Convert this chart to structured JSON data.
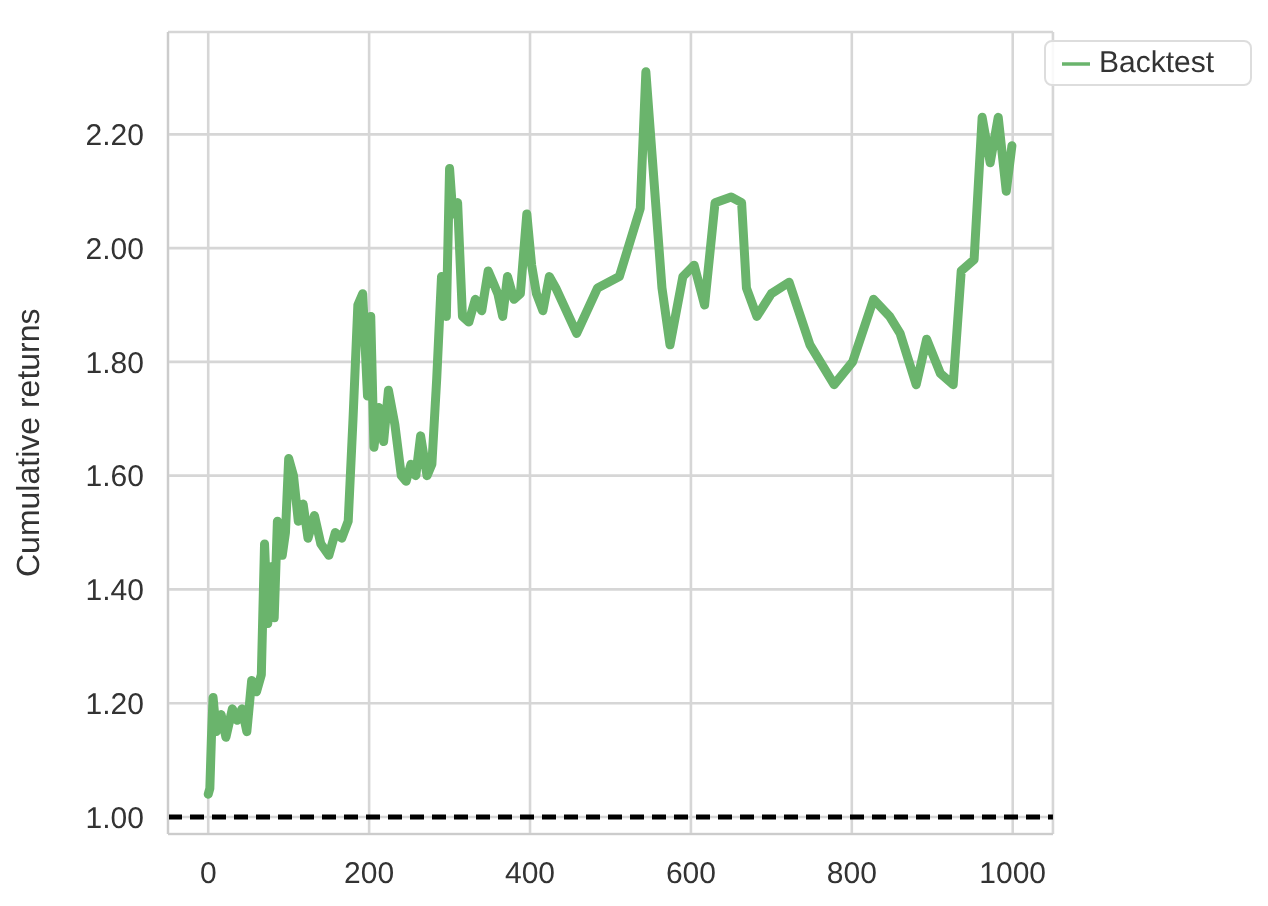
{
  "chart_data": {
    "type": "line",
    "ylabel": "Cumulative returns",
    "x": [
      0,
      2,
      4,
      6,
      10,
      16,
      22,
      30,
      36,
      42,
      48,
      54,
      60,
      66,
      70,
      74,
      78,
      82,
      86,
      92,
      96,
      100,
      106,
      112,
      118,
      124,
      132,
      140,
      150,
      158,
      166,
      174,
      180,
      186,
      192,
      198,
      202,
      206,
      212,
      218,
      224,
      232,
      240,
      246,
      252,
      258,
      264,
      272,
      278,
      284,
      290,
      296,
      300,
      304,
      310,
      316,
      324,
      332,
      340,
      348,
      354,
      360,
      366,
      372,
      380,
      388,
      396,
      402,
      408,
      416,
      424,
      432,
      458,
      484,
      511,
      537,
      544,
      554,
      564,
      574,
      590,
      604,
      617,
      630,
      650,
      663,
      669,
      682,
      700,
      722,
      748,
      778,
      801,
      827,
      847,
      860,
      880,
      893,
      910,
      926,
      936,
      952,
      962,
      972,
      982,
      992,
      999
    ],
    "series": [
      {
        "name": "Backtest",
        "color": "#6ab46c",
        "values": [
          1.04,
          1.05,
          1.14,
          1.21,
          1.15,
          1.18,
          1.14,
          1.19,
          1.17,
          1.19,
          1.15,
          1.24,
          1.22,
          1.25,
          1.48,
          1.34,
          1.44,
          1.35,
          1.52,
          1.46,
          1.5,
          1.63,
          1.6,
          1.52,
          1.55,
          1.49,
          1.53,
          1.48,
          1.46,
          1.5,
          1.49,
          1.52,
          1.7,
          1.9,
          1.92,
          1.74,
          1.88,
          1.65,
          1.72,
          1.66,
          1.75,
          1.69,
          1.6,
          1.59,
          1.62,
          1.6,
          1.67,
          1.6,
          1.62,
          1.77,
          1.95,
          1.88,
          2.14,
          2.06,
          2.08,
          1.88,
          1.87,
          1.91,
          1.89,
          1.96,
          1.94,
          1.92,
          1.88,
          1.95,
          1.91,
          1.92,
          2.06,
          1.97,
          1.92,
          1.89,
          1.95,
          1.93,
          1.85,
          1.93,
          1.95,
          2.07,
          2.31,
          2.12,
          1.93,
          1.83,
          1.95,
          1.97,
          1.9,
          2.08,
          2.09,
          2.08,
          1.93,
          1.88,
          1.92,
          1.94,
          1.83,
          1.76,
          1.8,
          1.91,
          1.88,
          1.85,
          1.76,
          1.84,
          1.78,
          1.76,
          1.96,
          1.98,
          2.23,
          2.15,
          2.23,
          2.1,
          2.18
        ]
      }
    ],
    "xlim": [
      -50,
      1050
    ],
    "ylim": [
      0.97,
      2.38
    ],
    "xticks": [
      0,
      200,
      400,
      600,
      800,
      1000
    ],
    "yticks": [
      {
        "value": 1,
        "label": "1.00"
      },
      {
        "value": 1.2,
        "label": "1.20"
      },
      {
        "value": 1.4,
        "label": "1.40"
      },
      {
        "value": 1.6,
        "label": "1.60"
      },
      {
        "value": 1.8,
        "label": "1.80"
      },
      {
        "value": 2,
        "label": "2.00"
      },
      {
        "value": 2.2,
        "label": "2.20"
      }
    ],
    "ref_lines": [
      {
        "axis": "y",
        "value": 1,
        "color": "#000000",
        "line_style": "dashed"
      }
    ],
    "grid": true,
    "legend": "top right",
    "marker": "none",
    "line_style": "solid"
  }
}
